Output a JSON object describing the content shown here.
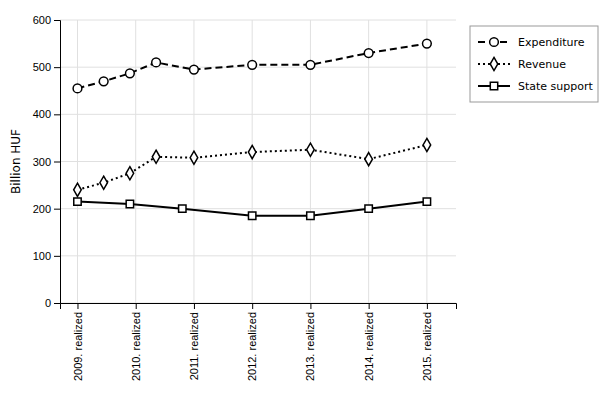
{
  "chart_data": {
    "type": "line",
    "ylabel": "Billion HUF",
    "xlim": [
      -0.3,
      6.5
    ],
    "xticks": [
      {
        "value": 0,
        "label": "2009. realized"
      },
      {
        "value": 1,
        "label": "2010. realized"
      },
      {
        "value": 2,
        "label": "2011. realized"
      },
      {
        "value": 3,
        "label": "2012. realized"
      },
      {
        "value": 4,
        "label": "2013. realized"
      },
      {
        "value": 5,
        "label": "2014. realized"
      },
      {
        "value": 6,
        "label": "2015. realized"
      }
    ],
    "ylim": [
      0,
      600
    ],
    "yticks": [
      0,
      100,
      200,
      300,
      400,
      500,
      600
    ],
    "grid": true,
    "legend": "right",
    "series": [
      {
        "name": "Expenditure",
        "color": "#000000",
        "marker": "circle",
        "line_style": "dashed",
        "x": [
          0,
          0.45,
          0.9,
          1.35,
          2,
          3,
          4,
          5,
          6
        ],
        "values": [
          455,
          470,
          487,
          510,
          495,
          505,
          505,
          530,
          550
        ]
      },
      {
        "name": "Revenue",
        "color": "#000000",
        "marker": "diamond",
        "line_style": "dotted",
        "x": [
          0,
          0.45,
          0.9,
          1.35,
          2,
          3,
          4,
          5,
          6
        ],
        "values": [
          240,
          255,
          275,
          310,
          308,
          320,
          325,
          305,
          335
        ]
      },
      {
        "name": "State support",
        "color": "#000000",
        "marker": "square",
        "line_style": "solid",
        "x": [
          0,
          0.9,
          1.8,
          3,
          4,
          5,
          6
        ],
        "values": [
          215,
          210,
          200,
          185,
          185,
          200,
          215
        ]
      }
    ]
  }
}
